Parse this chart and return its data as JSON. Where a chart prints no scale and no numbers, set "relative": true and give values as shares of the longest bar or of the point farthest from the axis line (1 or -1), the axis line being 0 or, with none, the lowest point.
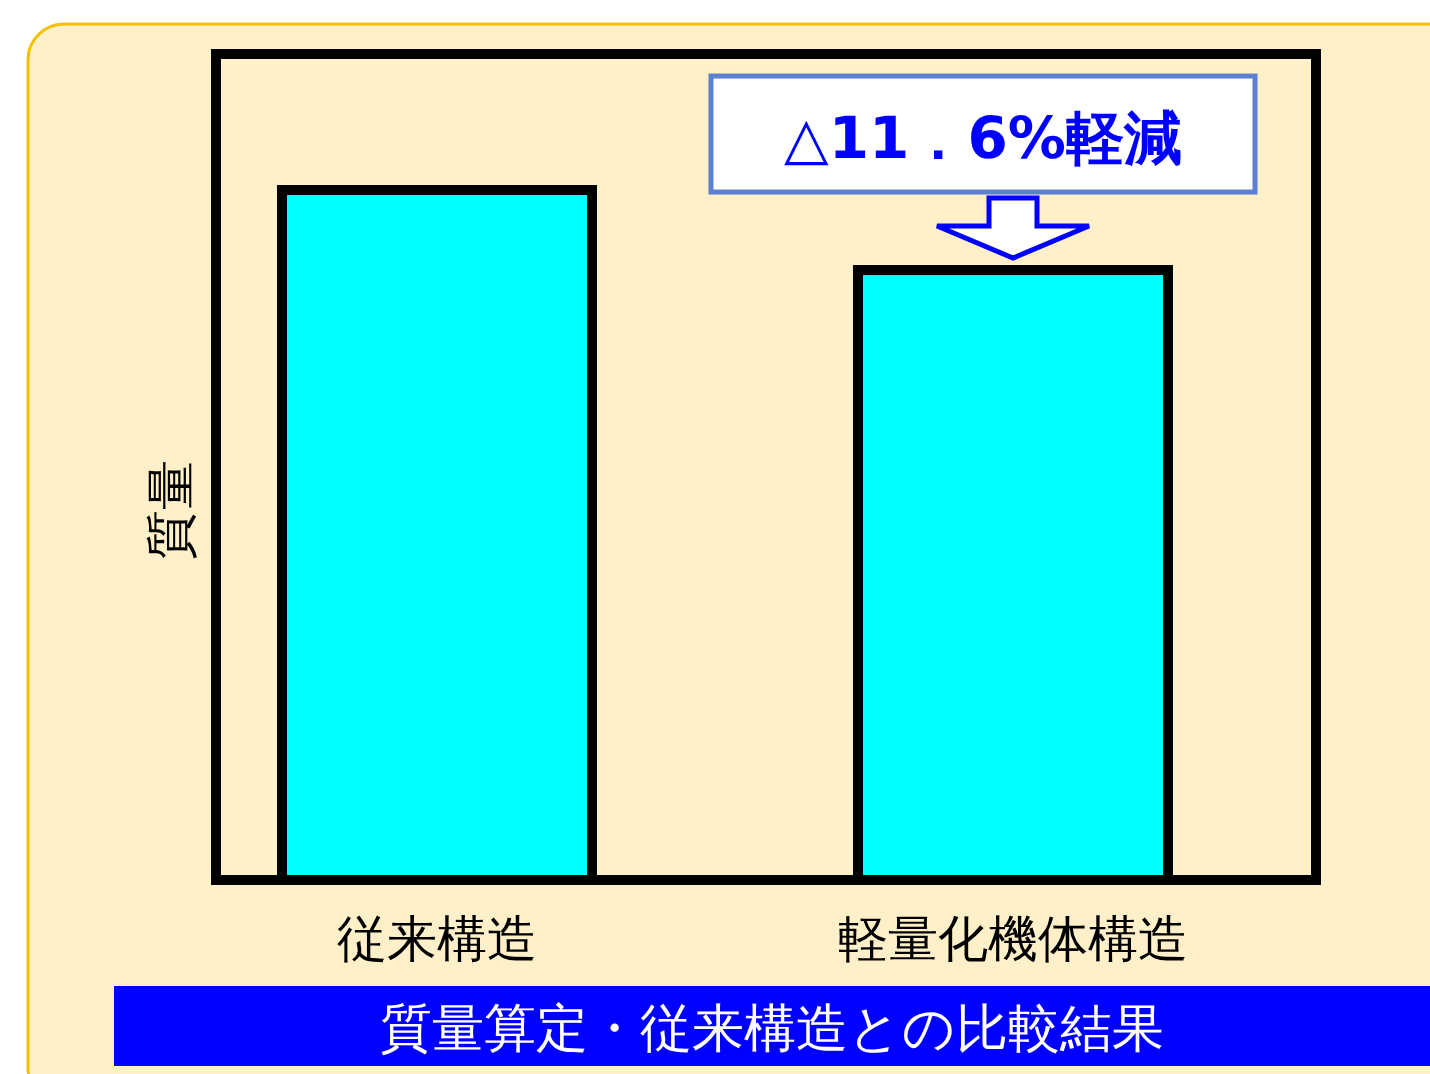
{
  "chart_data": {
    "type": "bar",
    "relative": true,
    "ylabel": "質量",
    "categories": [
      "従来構造",
      "軽量化機体構造"
    ],
    "values": [
      1,
      0.884
    ],
    "color": "#00ffff",
    "annotations": [
      {
        "text": "△11．6%軽減",
        "x": "軽量化機体構造",
        "y": 0.884
      },
      "質量算定・従来構造との比較結果"
    ]
  }
}
